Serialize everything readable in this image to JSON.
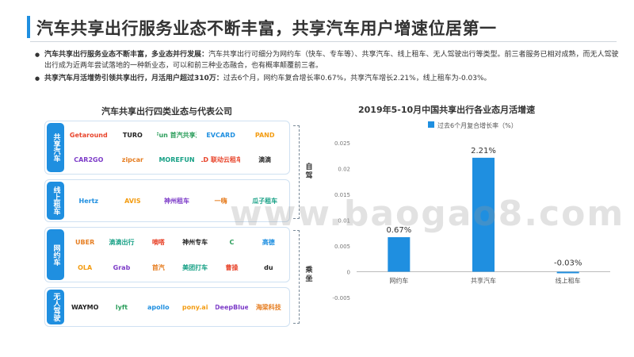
{
  "title": "汽车共享出行服务业态不断丰富，共享汽车用户增速位居第一",
  "bullets": [
    {
      "lead": "汽车共享出行服务业态不断丰富，多业态并行发展：",
      "text": "汽车共享出行可细分为网约车（快车、专车等）、共享汽车、线上租车、无人驾驶出行等类型。前三者服务已相对成熟，而无人驾驶出行成为近两年尝试落地的一种新业态，可以和前三种业态融合，也有概率颠覆前三者。"
    },
    {
      "lead": "共享汽车月活增势引领共享出行，月活用户超过310万：",
      "text": "过去6个月，网约车复合增长率0.67%，共享汽车增长2.21%，线上租车为-0.03%。"
    }
  ],
  "left_panel": {
    "title": "汽车共享出行四类业态与代表公司",
    "groups": [
      {
        "label": "共享汽车",
        "logos": [
          "Getaround",
          "TURO",
          "GoFun 首汽共享汽车",
          "EVCARD",
          "PAND",
          "CAR2GO",
          "zipcar",
          "MOREFUN",
          "LD 联动云租车",
          "滴滴"
        ]
      },
      {
        "label": "线上租车",
        "logos": [
          "Hertz",
          "AVIS",
          "神州租车",
          "一嗨",
          "瓜子租车"
        ]
      },
      {
        "label": "网约车",
        "logos": [
          "UBER",
          "滴滴出行",
          "嘀嗒",
          "神州专车",
          "C",
          "高德",
          "OLA",
          "Grab",
          "首汽",
          "美团打车",
          "曹操",
          "du"
        ]
      },
      {
        "label": "无人驾驶",
        "logos": [
          "WAYMO",
          "lyft",
          "apollo",
          "pony.ai",
          "DeepBlue",
          "海梁科技"
        ]
      }
    ],
    "bracket_labels": [
      "自驾",
      "乘坐"
    ]
  },
  "watermark": "www.baogao8.com",
  "chart_data": {
    "type": "bar",
    "title": "2019年5-10月中国共享出行各业态月活增速",
    "legend": "过去6个月复合增长率（%）",
    "legend_position": "top",
    "categories": [
      "网约车",
      "共享汽车",
      "线上租车"
    ],
    "values": [
      0.0067,
      0.0221,
      -0.0003
    ],
    "data_labels": [
      "0.67%",
      "2.21%",
      "-0.03%"
    ],
    "yticks": [
      -0.005,
      0,
      0.005,
      0.01,
      0.015,
      0.02,
      0.025
    ],
    "ytick_labels": [
      "-0.005",
      "0",
      "0.005",
      "0.01",
      "0.015",
      "0.02",
      "0.025"
    ],
    "ylim": [
      -0.005,
      0.025
    ],
    "bar_color": "#1f8fe0",
    "grid": false
  },
  "colors": {
    "accent": "#1f8fe0"
  }
}
